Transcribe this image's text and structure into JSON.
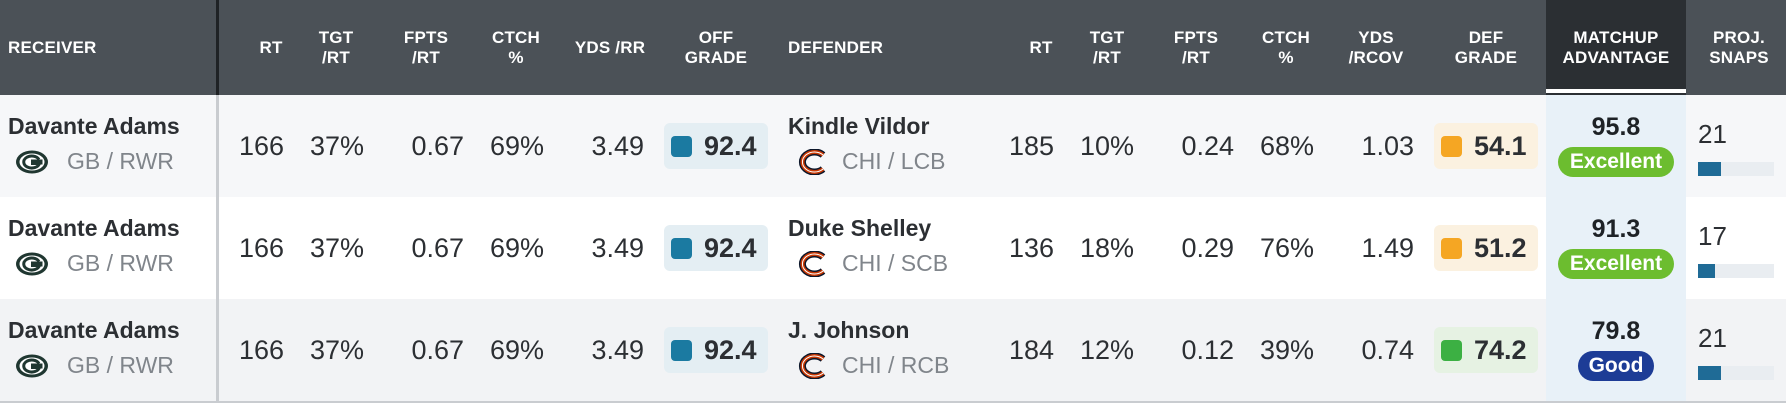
{
  "headers": {
    "receiver": "RECEIVER",
    "rt": "RT",
    "tgt_rt": "TGT\n/RT",
    "fpts_rt": "FPTS\n/RT",
    "ctch": "CTCH\n%",
    "yds_rr": "YDS /RR",
    "off_grade": "OFF\nGRADE",
    "defender": "DEFENDER",
    "def_rt": "RT",
    "def_tgt_rt": "TGT\n/RT",
    "def_fpts_rt": "FPTS\n/RT",
    "def_ctch": "CTCH\n%",
    "yds_rcov": "YDS\n/RCOV",
    "def_grade": "DEF\nGRADE",
    "matchup": "MATCHUP\nADVANTAGE",
    "proj_snaps": "PROJ.\nSNAPS"
  },
  "colors": {
    "header_bg": "#4b5157",
    "matchup_header_bg": "#2b2f33",
    "off_grade_tint": "#e4eef3",
    "off_grade_square": "#1b7aa1",
    "grade_orange": "#f5a623",
    "grade_orange_tint": "#fbf1e0",
    "grade_green": "#3cb043",
    "grade_green_tint": "#e6f2e3",
    "badge_excellent": "#6cbd2f",
    "badge_good": "#1d3c96",
    "snap_fill": "#1f6b96"
  },
  "rows": [
    {
      "receiver": {
        "name": "Davante Adams",
        "team": "GB / RWR",
        "logo": "packers-logo"
      },
      "rt": "166",
      "tgt_rt": "37%",
      "fpts_rt": "0.67",
      "ctch": "69%",
      "yds_rr": "3.49",
      "off_grade": "92.4",
      "defender": {
        "name": "Kindle Vildor",
        "team": "CHI / LCB",
        "logo": "bears-logo"
      },
      "def_rt": "185",
      "def_tgt_rt": "10%",
      "def_fpts_rt": "0.24",
      "def_ctch": "68%",
      "yds_rcov": "1.03",
      "def_grade": "54.1",
      "def_grade_color": "orange",
      "matchup": "95.8",
      "matchup_label": "Excellent",
      "matchup_tier": "excellent",
      "proj_snaps": "21",
      "snap_share": 0.3
    },
    {
      "receiver": {
        "name": "Davante Adams",
        "team": "GB / RWR",
        "logo": "packers-logo"
      },
      "rt": "166",
      "tgt_rt": "37%",
      "fpts_rt": "0.67",
      "ctch": "69%",
      "yds_rr": "3.49",
      "off_grade": "92.4",
      "defender": {
        "name": "Duke Shelley",
        "team": "CHI / SCB",
        "logo": "bears-logo"
      },
      "def_rt": "136",
      "def_tgt_rt": "18%",
      "def_fpts_rt": "0.29",
      "def_ctch": "76%",
      "yds_rcov": "1.49",
      "def_grade": "51.2",
      "def_grade_color": "orange",
      "matchup": "91.3",
      "matchup_label": "Excellent",
      "matchup_tier": "excellent",
      "proj_snaps": "17",
      "snap_share": 0.22
    },
    {
      "receiver": {
        "name": "Davante Adams",
        "team": "GB / RWR",
        "logo": "packers-logo"
      },
      "rt": "166",
      "tgt_rt": "37%",
      "fpts_rt": "0.67",
      "ctch": "69%",
      "yds_rr": "3.49",
      "off_grade": "92.4",
      "defender": {
        "name": "J. Johnson",
        "team": "CHI / RCB",
        "logo": "bears-logo"
      },
      "def_rt": "184",
      "def_tgt_rt": "12%",
      "def_fpts_rt": "0.12",
      "def_ctch": "39%",
      "yds_rcov": "0.74",
      "def_grade": "74.2",
      "def_grade_color": "green",
      "matchup": "79.8",
      "matchup_label": "Good",
      "matchup_tier": "good",
      "proj_snaps": "21",
      "snap_share": 0.3
    }
  ]
}
